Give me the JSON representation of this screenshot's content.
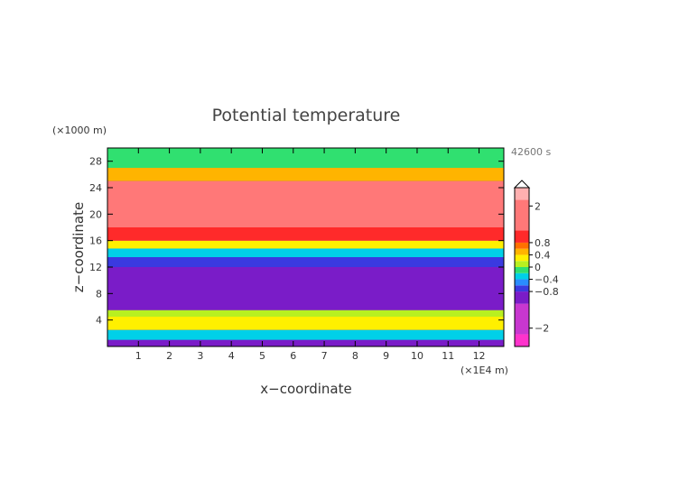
{
  "chart_data": {
    "type": "heatmap",
    "title": "Potential temperature",
    "xlabel": "x−coordinate",
    "ylabel": "z−coordinate",
    "x_unit": "(×1E4 m)",
    "y_unit": "(×1000 m)",
    "time_label": "42600 s",
    "xlim": [
      0,
      12.8
    ],
    "ylim": [
      0,
      30
    ],
    "x_ticks": [
      1,
      2,
      3,
      4,
      5,
      6,
      7,
      8,
      9,
      10,
      11,
      12
    ],
    "y_ticks": [
      4,
      8,
      12,
      16,
      20,
      24,
      28
    ],
    "colorbar": {
      "range": [
        -2.6,
        2.6
      ],
      "labels": [
        {
          "value": 2,
          "text": "2"
        },
        {
          "value": 0.8,
          "text": "0.8"
        },
        {
          "value": 0.4,
          "text": "0.4"
        },
        {
          "value": 0,
          "text": "0"
        },
        {
          "value": -0.4,
          "text": "−0.4"
        },
        {
          "value": -0.8,
          "text": "−0.8"
        },
        {
          "value": -2,
          "text": "−2"
        }
      ],
      "bins": [
        {
          "from": -2.6,
          "to": -2.2,
          "color": "#ff33cc"
        },
        {
          "from": -2.2,
          "to": -1.2,
          "color": "#c837d0"
        },
        {
          "from": -1.2,
          "to": -0.8,
          "color": "#7a1cc8"
        },
        {
          "from": -0.8,
          "to": -0.6,
          "color": "#3a3ae0"
        },
        {
          "from": -0.6,
          "to": -0.4,
          "color": "#2a8cff"
        },
        {
          "from": -0.4,
          "to": -0.2,
          "color": "#00d0e8"
        },
        {
          "from": -0.2,
          "to": 0.0,
          "color": "#30e070"
        },
        {
          "from": 0.0,
          "to": 0.2,
          "color": "#b8f020"
        },
        {
          "from": 0.2,
          "to": 0.4,
          "color": "#fff000"
        },
        {
          "from": 0.4,
          "to": 0.6,
          "color": "#ffb400"
        },
        {
          "from": 0.6,
          "to": 0.8,
          "color": "#ff7000"
        },
        {
          "from": 0.8,
          "to": 1.2,
          "color": "#ff2a2a"
        },
        {
          "from": 1.2,
          "to": 2.2,
          "color": "#ff7878"
        },
        {
          "from": 2.2,
          "to": 2.6,
          "color": "#ffb0b0"
        }
      ]
    },
    "bands": [
      {
        "z": [
          0,
          1
        ],
        "value": -1.0
      },
      {
        "z": [
          1,
          2.5
        ],
        "value": -0.35
      },
      {
        "z": [
          2.5,
          4.5
        ],
        "value": 0.3
      },
      {
        "z": [
          4.5,
          5.5
        ],
        "value": 0.1
      },
      {
        "z": [
          5.5,
          12
        ],
        "value": -1.0
      },
      {
        "z": [
          12,
          13.5
        ],
        "value": -0.7
      },
      {
        "z": [
          13.5,
          14.8
        ],
        "value": -0.3
      },
      {
        "z": [
          14.8,
          16
        ],
        "value": 0.25
      },
      {
        "z": [
          16,
          18
        ],
        "value": 0.9
      },
      {
        "z": [
          18,
          25
        ],
        "value": 1.5
      },
      {
        "z": [
          25,
          27
        ],
        "value": 0.5
      },
      {
        "z": [
          27,
          30
        ],
        "value": -0.2
      }
    ]
  }
}
